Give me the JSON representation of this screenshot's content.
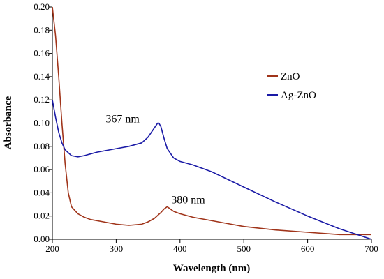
{
  "chart_data": {
    "type": "line",
    "xlabel": "Wavelength (nm)",
    "ylabel": "Absorbance",
    "xlim": [
      200,
      700
    ],
    "ylim": [
      0,
      0.2
    ],
    "x_ticks": [
      "200",
      "300",
      "400",
      "500",
      "600",
      "700"
    ],
    "y_ticks": [
      "0.00",
      "0.02",
      "0.04",
      "0.06",
      "0.08",
      "0.10",
      "0.12",
      "0.14",
      "0.16",
      "0.18",
      "0.20"
    ],
    "grid": false,
    "legend_position": "right",
    "series": [
      {
        "name": "ZnO",
        "color": "#a0341a",
        "x": [
          200,
          205,
          210,
          215,
          220,
          225,
          230,
          240,
          250,
          260,
          280,
          300,
          320,
          340,
          350,
          360,
          370,
          375,
          380,
          385,
          390,
          400,
          420,
          450,
          480,
          500,
          550,
          600,
          650,
          680,
          700
        ],
        "y": [
          0.2,
          0.175,
          0.14,
          0.1,
          0.065,
          0.04,
          0.028,
          0.022,
          0.019,
          0.017,
          0.015,
          0.013,
          0.012,
          0.013,
          0.015,
          0.018,
          0.023,
          0.026,
          0.028,
          0.026,
          0.024,
          0.022,
          0.019,
          0.016,
          0.013,
          0.011,
          0.008,
          0.006,
          0.004,
          0.004,
          0.004
        ]
      },
      {
        "name": "Ag-ZnO",
        "color": "#1a1aa6",
        "x": [
          200,
          205,
          210,
          215,
          220,
          230,
          240,
          250,
          270,
          300,
          320,
          340,
          350,
          360,
          365,
          367,
          370,
          375,
          380,
          390,
          400,
          420,
          450,
          500,
          550,
          600,
          650,
          700
        ],
        "y": [
          0.12,
          0.105,
          0.092,
          0.083,
          0.077,
          0.072,
          0.071,
          0.072,
          0.075,
          0.078,
          0.08,
          0.083,
          0.088,
          0.096,
          0.1,
          0.1,
          0.097,
          0.087,
          0.078,
          0.07,
          0.067,
          0.064,
          0.058,
          0.045,
          0.032,
          0.02,
          0.009,
          0.0
        ]
      }
    ],
    "annotations": [
      {
        "text": "367 nm",
        "x": 367,
        "y": 0.1
      },
      {
        "text": "380 nm",
        "x": 380,
        "y": 0.028
      }
    ]
  }
}
